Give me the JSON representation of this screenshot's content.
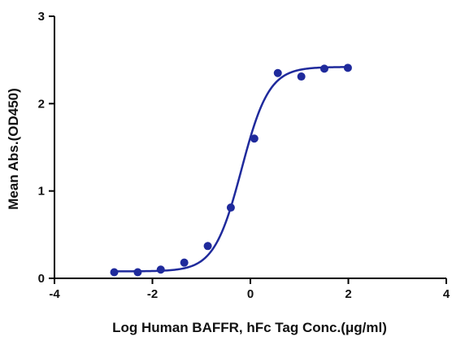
{
  "chart_data": {
    "type": "scatter",
    "title": "",
    "xlabel": "Log Human BAFFR, hFc Tag Conc.(μg/ml)",
    "ylabel": "Mean Abs.(OD450)",
    "xlim": [
      -4,
      4
    ],
    "ylim": [
      0,
      3
    ],
    "x_ticks": [
      "-4",
      "-2",
      "0",
      "2",
      "4"
    ],
    "y_ticks": [
      "0",
      "1",
      "2",
      "3"
    ],
    "grid": false,
    "legend": "none",
    "colors": {
      "series": "#1f2a9c",
      "axis": "#000000"
    },
    "series": [
      {
        "points": [
          {
            "x": -2.78,
            "y": 0.07
          },
          {
            "x": -2.3,
            "y": 0.07
          },
          {
            "x": -1.83,
            "y": 0.1
          },
          {
            "x": -1.35,
            "y": 0.18
          },
          {
            "x": -0.87,
            "y": 0.37
          },
          {
            "x": -0.4,
            "y": 0.81
          },
          {
            "x": 0.08,
            "y": 1.6
          },
          {
            "x": 0.56,
            "y": 2.35
          },
          {
            "x": 1.04,
            "y": 2.31
          },
          {
            "x": 1.51,
            "y": 2.4
          },
          {
            "x": 1.99,
            "y": 2.41
          }
        ],
        "fit": {
          "model": "4PL",
          "bottom": 0.08,
          "top": 2.42,
          "logEC50": -0.18,
          "hill": 1.55,
          "x_range": [
            -2.78,
            1.99
          ]
        }
      }
    ]
  }
}
